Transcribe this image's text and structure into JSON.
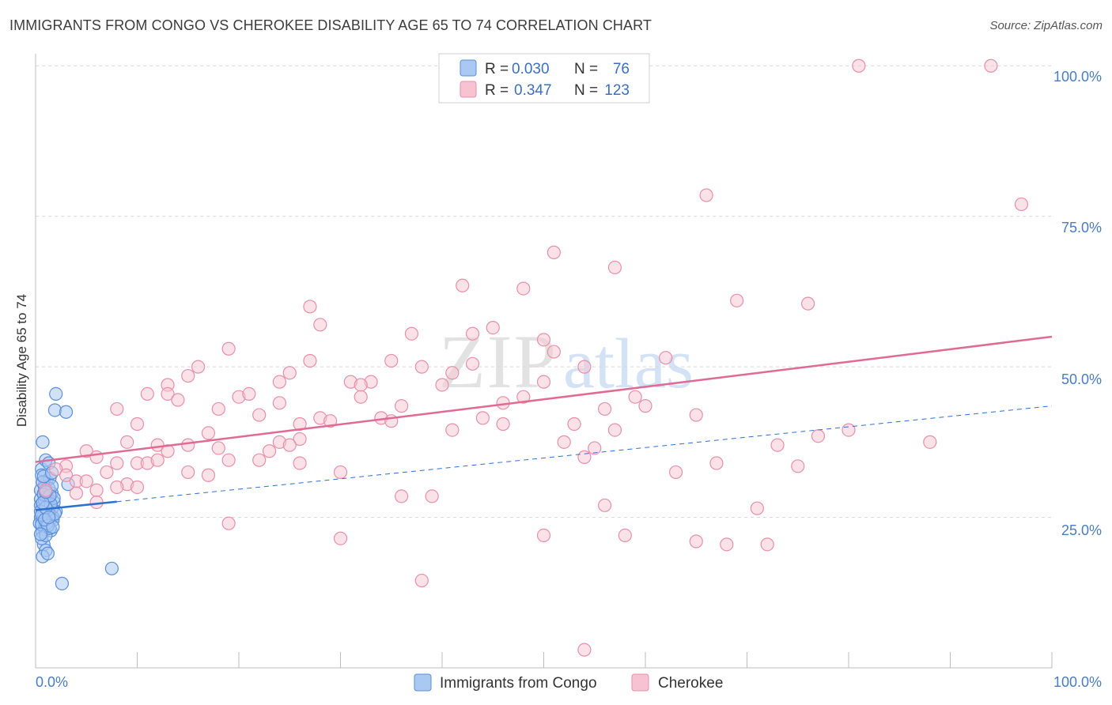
{
  "title": "IMMIGRANTS FROM CONGO VS CHEROKEE DISABILITY AGE 65 TO 74 CORRELATION CHART",
  "source": "Source: ZipAtlas.com",
  "colors": {
    "congo_fill": "#a9c9f2",
    "congo_stroke": "#5b8fd8",
    "congo_line": "#2f6fd0",
    "cherokee_fill": "#f7c3d2",
    "cherokee_stroke": "#e88fab",
    "cherokee_line": "#e06a94",
    "grid": "#d9d9d9",
    "tick_label": "#4a7cc4"
  },
  "legend": {
    "r_label": "R =",
    "n_label": "N =",
    "rows": [
      {
        "series": "Immigrants from Congo",
        "r": "0.030",
        "n": "76"
      },
      {
        "series": "Cherokee",
        "r": "0.347",
        "n": "123"
      }
    ]
  },
  "chart_data": {
    "type": "scatter",
    "title": "IMMIGRANTS FROM CONGO VS CHEROKEE DISABILITY AGE 65 TO 74 CORRELATION CHART",
    "xlabel": "",
    "ylabel": "Disability Age 65 to 74",
    "xlim": [
      0,
      100
    ],
    "ylim": [
      0,
      102
    ],
    "x_tick_labels": [
      "0.0%",
      "100.0%"
    ],
    "y_ticks": [
      25,
      50,
      75,
      100
    ],
    "y_tick_labels": [
      "25.0%",
      "50.0%",
      "75.0%",
      "100.0%"
    ],
    "watermark": {
      "part1": "ZIP",
      "part2": "atlas"
    },
    "series": [
      {
        "name": "Immigrants from Congo",
        "r": 0.03,
        "n": 76,
        "trend": {
          "x": [
            0,
            8
          ],
          "y": [
            26.2,
            27.6
          ]
        },
        "trend_ext": {
          "x": [
            8,
            100
          ],
          "y": [
            27.6,
            43.5
          ]
        },
        "points": [
          [
            0.5,
            25.0
          ],
          [
            0.6,
            24.0
          ],
          [
            0.8,
            26.5
          ],
          [
            0.9,
            23.5
          ],
          [
            1.0,
            27.0
          ],
          [
            1.1,
            25.5
          ],
          [
            1.2,
            24.5
          ],
          [
            0.7,
            22.5
          ],
          [
            1.3,
            28.0
          ],
          [
            1.4,
            26.0
          ],
          [
            1.5,
            24.8
          ],
          [
            0.5,
            29.5
          ],
          [
            0.9,
            30.5
          ],
          [
            1.1,
            31.0
          ],
          [
            0.6,
            33.0
          ],
          [
            1.0,
            34.5
          ],
          [
            1.6,
            29.0
          ],
          [
            1.8,
            27.5
          ],
          [
            2.0,
            26.0
          ],
          [
            1.7,
            25.0
          ],
          [
            0.8,
            20.5
          ],
          [
            1.0,
            19.5
          ],
          [
            0.7,
            18.5
          ],
          [
            1.2,
            19.0
          ],
          [
            0.7,
            37.5
          ],
          [
            2.0,
            45.5
          ],
          [
            1.9,
            42.8
          ],
          [
            3.0,
            42.5
          ],
          [
            7.5,
            16.5
          ],
          [
            2.6,
            14.0
          ],
          [
            3.2,
            30.5
          ],
          [
            1.3,
            34.0
          ],
          [
            0.6,
            32.0
          ],
          [
            0.9,
            30.0
          ],
          [
            1.4,
            31.5
          ],
          [
            0.5,
            28.0
          ],
          [
            0.8,
            29.0
          ],
          [
            1.2,
            27.5
          ],
          [
            1.6,
            26.5
          ],
          [
            0.4,
            24.0
          ],
          [
            0.9,
            23.0
          ],
          [
            1.5,
            22.8
          ],
          [
            0.6,
            21.5
          ],
          [
            1.0,
            24.2
          ],
          [
            1.3,
            25.8
          ],
          [
            1.7,
            24.5
          ],
          [
            0.7,
            26.8
          ],
          [
            1.1,
            28.5
          ],
          [
            0.5,
            27.0
          ],
          [
            0.8,
            25.2
          ],
          [
            1.2,
            26.2
          ],
          [
            1.8,
            28.2
          ],
          [
            0.6,
            23.8
          ],
          [
            1.0,
            22.0
          ],
          [
            1.4,
            23.2
          ],
          [
            0.9,
            27.8
          ],
          [
            1.3,
            29.8
          ],
          [
            0.7,
            30.8
          ],
          [
            1.6,
            30.2
          ],
          [
            0.5,
            26.0
          ],
          [
            1.1,
            24.0
          ],
          [
            0.8,
            28.8
          ],
          [
            1.5,
            27.2
          ],
          [
            1.9,
            25.6
          ],
          [
            0.6,
            25.4
          ],
          [
            1.0,
            26.6
          ],
          [
            1.2,
            23.6
          ],
          [
            0.9,
            24.6
          ],
          [
            1.4,
            28.6
          ],
          [
            0.7,
            27.4
          ],
          [
            1.7,
            23.4
          ],
          [
            0.5,
            22.2
          ],
          [
            1.3,
            25.0
          ],
          [
            1.0,
            29.2
          ],
          [
            0.8,
            31.8
          ],
          [
            1.6,
            32.4
          ]
        ]
      },
      {
        "name": "Cherokee",
        "r": 0.347,
        "n": 123,
        "trend": {
          "x": [
            0,
            100
          ],
          "y": [
            34.2,
            55.0
          ]
        },
        "points": [
          [
            81,
            100
          ],
          [
            94,
            100
          ],
          [
            66,
            78.5
          ],
          [
            97,
            77
          ],
          [
            51,
            69
          ],
          [
            57,
            66.5
          ],
          [
            42,
            63.5
          ],
          [
            48,
            63
          ],
          [
            69,
            61
          ],
          [
            76,
            60.5
          ],
          [
            27,
            60
          ],
          [
            28,
            57
          ],
          [
            37,
            55.5
          ],
          [
            45,
            56.5
          ],
          [
            43,
            55.5
          ],
          [
            50,
            54.5
          ],
          [
            51,
            52.5
          ],
          [
            19,
            53
          ],
          [
            27,
            51
          ],
          [
            35,
            51
          ],
          [
            62,
            51.5
          ],
          [
            16,
            50
          ],
          [
            38,
            50
          ],
          [
            41,
            49
          ],
          [
            43,
            50.5
          ],
          [
            54,
            50
          ],
          [
            15,
            48.5
          ],
          [
            25,
            49
          ],
          [
            24,
            47.5
          ],
          [
            33,
            47.5
          ],
          [
            31,
            47.5
          ],
          [
            13,
            47
          ],
          [
            32,
            47
          ],
          [
            40,
            47
          ],
          [
            50,
            47.5
          ],
          [
            11,
            45.5
          ],
          [
            13,
            45.5
          ],
          [
            20,
            45
          ],
          [
            21,
            45.5
          ],
          [
            32,
            45
          ],
          [
            48,
            45
          ],
          [
            14,
            44.5
          ],
          [
            24,
            44
          ],
          [
            46,
            44
          ],
          [
            59,
            45
          ],
          [
            36,
            43.5
          ],
          [
            8,
            43
          ],
          [
            18,
            43
          ],
          [
            60,
            43.5
          ],
          [
            56,
            43
          ],
          [
            22,
            42
          ],
          [
            34,
            41.5
          ],
          [
            44,
            41.5
          ],
          [
            65,
            42
          ],
          [
            28,
            41.5
          ],
          [
            29,
            41
          ],
          [
            35,
            41
          ],
          [
            10,
            40.5
          ],
          [
            26,
            40.5
          ],
          [
            46,
            40.5
          ],
          [
            53,
            40.5
          ],
          [
            41,
            39.5
          ],
          [
            57,
            39.5
          ],
          [
            77,
            38.5
          ],
          [
            80,
            39.5
          ],
          [
            17,
            39
          ],
          [
            26,
            38
          ],
          [
            9,
            37.5
          ],
          [
            12,
            37
          ],
          [
            15,
            37
          ],
          [
            24,
            37.5
          ],
          [
            25,
            37
          ],
          [
            52,
            37.5
          ],
          [
            73,
            37
          ],
          [
            88,
            37.5
          ],
          [
            18,
            36.5
          ],
          [
            5,
            36
          ],
          [
            13,
            36
          ],
          [
            23,
            36
          ],
          [
            55,
            36.5
          ],
          [
            54,
            35
          ],
          [
            6,
            35
          ],
          [
            10,
            34
          ],
          [
            11,
            34
          ],
          [
            22,
            34.5
          ],
          [
            19,
            34.5
          ],
          [
            26,
            34
          ],
          [
            3,
            33.5
          ],
          [
            8,
            34
          ],
          [
            12,
            34.5
          ],
          [
            67,
            34
          ],
          [
            75,
            33.5
          ],
          [
            2,
            33
          ],
          [
            7,
            32.5
          ],
          [
            15,
            32.5
          ],
          [
            17,
            32
          ],
          [
            30,
            32.5
          ],
          [
            63,
            32.5
          ],
          [
            3,
            32
          ],
          [
            4,
            31
          ],
          [
            5,
            31
          ],
          [
            9,
            30.5
          ],
          [
            8,
            30
          ],
          [
            6,
            29.5
          ],
          [
            10,
            30
          ],
          [
            1,
            29.5
          ],
          [
            4,
            29
          ],
          [
            36,
            28.5
          ],
          [
            39,
            28.5
          ],
          [
            56,
            27
          ],
          [
            71,
            26.5
          ],
          [
            6,
            27.5
          ],
          [
            19,
            24
          ],
          [
            30,
            21.5
          ],
          [
            50,
            22
          ],
          [
            58,
            22
          ],
          [
            65,
            21
          ],
          [
            68,
            20.5
          ],
          [
            72,
            20.5
          ],
          [
            38,
            14.5
          ],
          [
            54,
            3
          ]
        ]
      }
    ]
  }
}
